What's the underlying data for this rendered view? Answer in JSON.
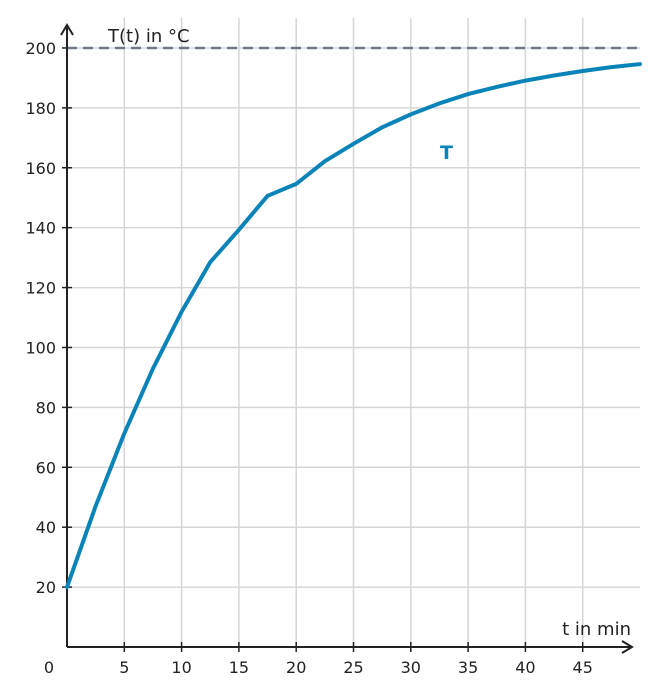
{
  "chart_data": {
    "type": "line",
    "ylabel": "T(t) in °C",
    "xlabel": "t in min",
    "xlim": [
      0,
      50
    ],
    "ylim": [
      0,
      210
    ],
    "grid": true,
    "x_ticks": [
      "0",
      "5",
      "10",
      "15",
      "20",
      "25",
      "30",
      "35",
      "40",
      "45"
    ],
    "y_ticks": [
      "20",
      "40",
      "60",
      "80",
      "100",
      "120",
      "140",
      "160",
      "180",
      "200"
    ],
    "asymptote": {
      "y": 200,
      "style": "dashed",
      "color": "#6b7a86"
    },
    "series": [
      {
        "name": "T",
        "color": "#0a84b8",
        "x": [
          0,
          2.5,
          5,
          7.5,
          10,
          12.5,
          15,
          17.5,
          20,
          22.5,
          25,
          27.5,
          30,
          32.5,
          35,
          37.5,
          40,
          42.5,
          45,
          47.5,
          50
        ],
        "y": [
          20,
          47.1,
          71.3,
          92.9,
          111.9,
          128.5,
          139.3,
          150.6,
          154.6,
          162.2,
          168.0,
          173.5,
          177.8,
          181.5,
          184.6,
          187.0,
          189.1,
          190.8,
          192.3,
          193.6,
          194.6
        ]
      }
    ]
  }
}
